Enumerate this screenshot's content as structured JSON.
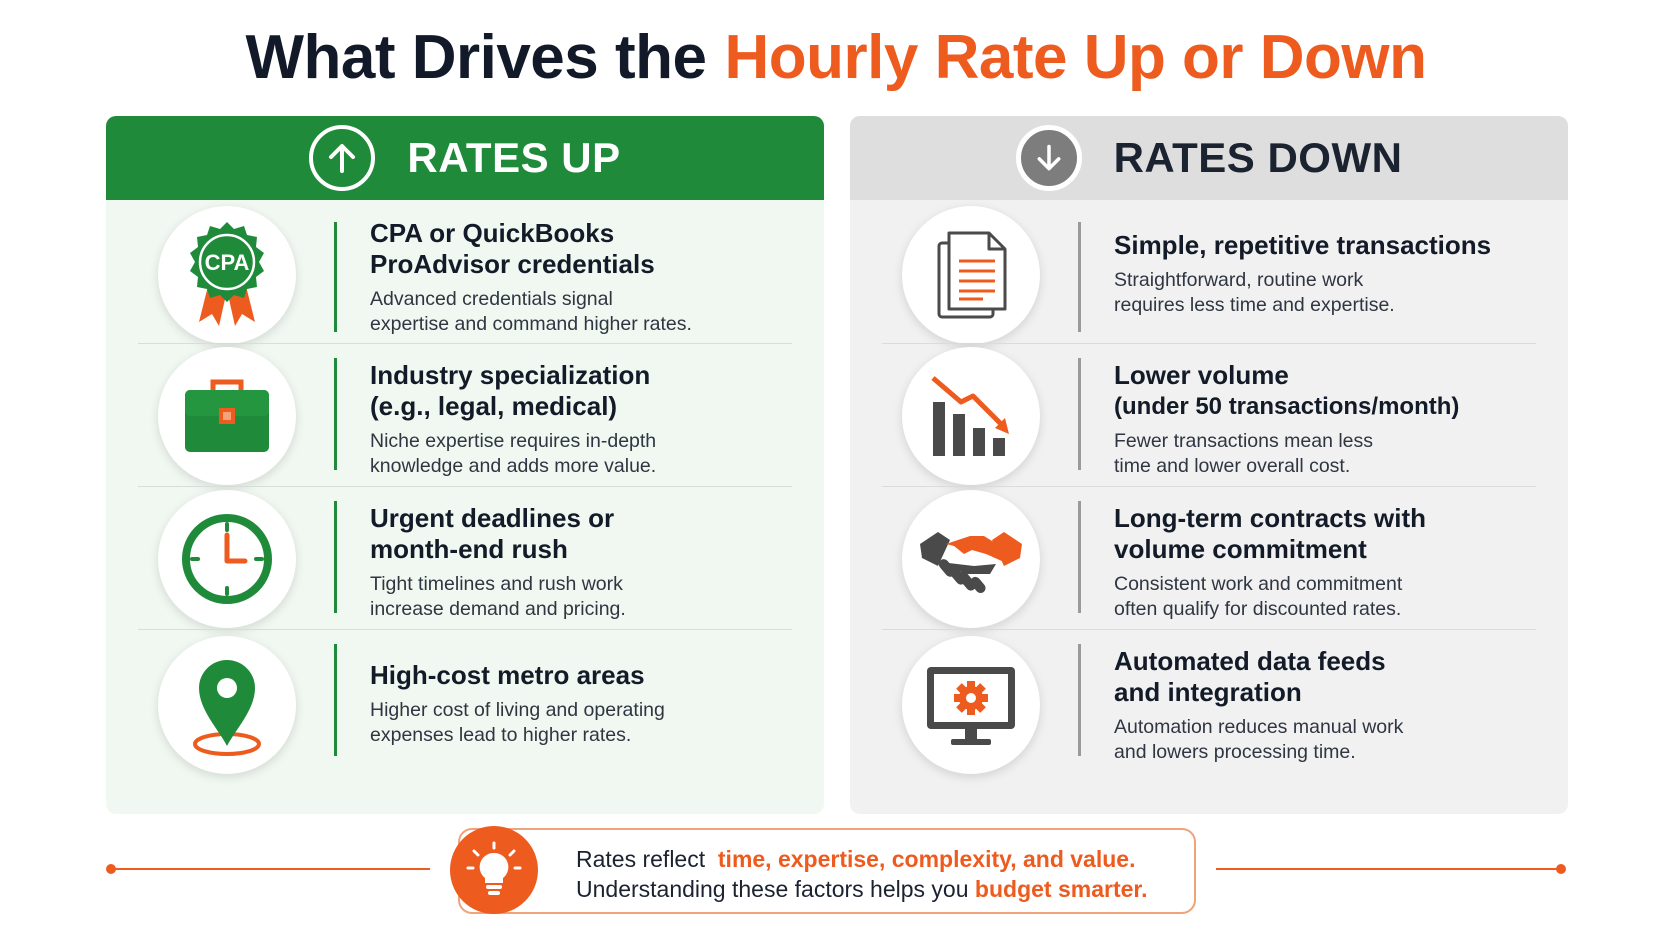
{
  "title": {
    "part1": "What Drives the",
    "part2": "Hourly Rate Up or Down"
  },
  "colors": {
    "green": "#1f8b3a",
    "orange": "#ee5b1f",
    "gray": "#7d7d7d",
    "navy": "#121a2a"
  },
  "up": {
    "header": "RATES UP",
    "header_icon": "arrow-up-circle-icon",
    "items": [
      {
        "icon": "cpa-badge-icon",
        "badge_text": "CPA",
        "title_lines": [
          "CPA or QuickBooks",
          "ProAdvisor credentials"
        ],
        "desc_lines": [
          "Advanced credentials signal",
          "expertise and command higher rates."
        ]
      },
      {
        "icon": "briefcase-icon",
        "title_lines": [
          "Industry specialization",
          "(e.g., legal, medical)"
        ],
        "desc_lines": [
          "Niche expertise requires in-depth",
          "knowledge and adds more value."
        ]
      },
      {
        "icon": "clock-icon",
        "title_lines": [
          "Urgent deadlines or",
          "month-end rush"
        ],
        "desc_lines": [
          "Tight timelines and rush work",
          "increase demand and pricing."
        ]
      },
      {
        "icon": "location-pin-icon",
        "title_lines": [
          "High-cost metro areas"
        ],
        "desc_lines": [
          "Higher cost of living and operating",
          "expenses lead to higher rates."
        ]
      }
    ]
  },
  "down": {
    "header": "RATES DOWN",
    "header_icon": "arrow-down-circle-icon",
    "items": [
      {
        "icon": "document-icon",
        "title_lines": [
          "Simple, repetitive transactions"
        ],
        "desc_lines": [
          "Straightforward, routine work",
          "requires less time and expertise."
        ]
      },
      {
        "icon": "declining-bar-chart-icon",
        "title_lines": [
          "Lower volume",
          "(under 50 transactions/month)"
        ],
        "desc_lines": [
          "Fewer transactions mean less",
          "time and lower overall cost."
        ]
      },
      {
        "icon": "handshake-icon",
        "title_lines": [
          "Long-term contracts with",
          "volume commitment"
        ],
        "desc_lines": [
          "Consistent work and commitment",
          "often qualify for discounted rates."
        ]
      },
      {
        "icon": "monitor-gear-icon",
        "title_lines": [
          "Automated data feeds",
          "and integration"
        ],
        "desc_lines": [
          "Automation reduces manual work",
          "and lowers processing time."
        ]
      }
    ]
  },
  "footer": {
    "icon": "lightbulb-icon",
    "line1_prefix": "Rates reflect",
    "line1_highlight": "time, expertise, complexity, and value.",
    "line2_prefix": "Understanding these factors helps you",
    "line2_highlight": "budget smarter."
  }
}
